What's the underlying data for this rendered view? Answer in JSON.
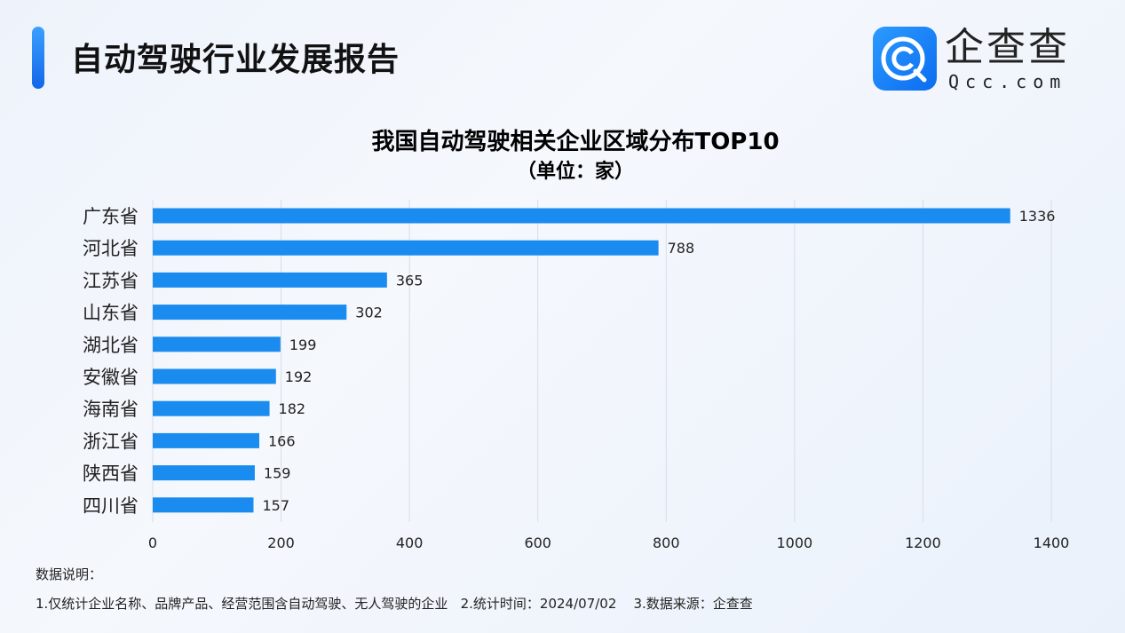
{
  "header": {
    "title": "自动驾驶行业发展报告",
    "brand": "企查查",
    "brand_sub": "Qcc.com"
  },
  "chart_data": {
    "type": "bar",
    "orientation": "horizontal",
    "title": "我国自动驾驶相关企业区域分布TOP10",
    "subtitle": "（单位：家）",
    "categories": [
      "广东省",
      "河北省",
      "江苏省",
      "山东省",
      "湖北省",
      "安徽省",
      "海南省",
      "浙江省",
      "陕西省",
      "四川省"
    ],
    "values": [
      1336,
      788,
      365,
      302,
      199,
      192,
      182,
      166,
      159,
      157
    ],
    "xlim": [
      0,
      1400
    ],
    "xticks": [
      0,
      200,
      400,
      600,
      800,
      1000,
      1200,
      1400
    ],
    "grid": "vertical",
    "bar_color": "#1a8cf0"
  },
  "notes": {
    "heading": "数据说明：",
    "line": "1.仅统计企业名称、品牌产品、经营范围含自动驾驶、无人驾驶的企业   2.统计时间：2024/07/02    3.数据来源：企查查"
  }
}
